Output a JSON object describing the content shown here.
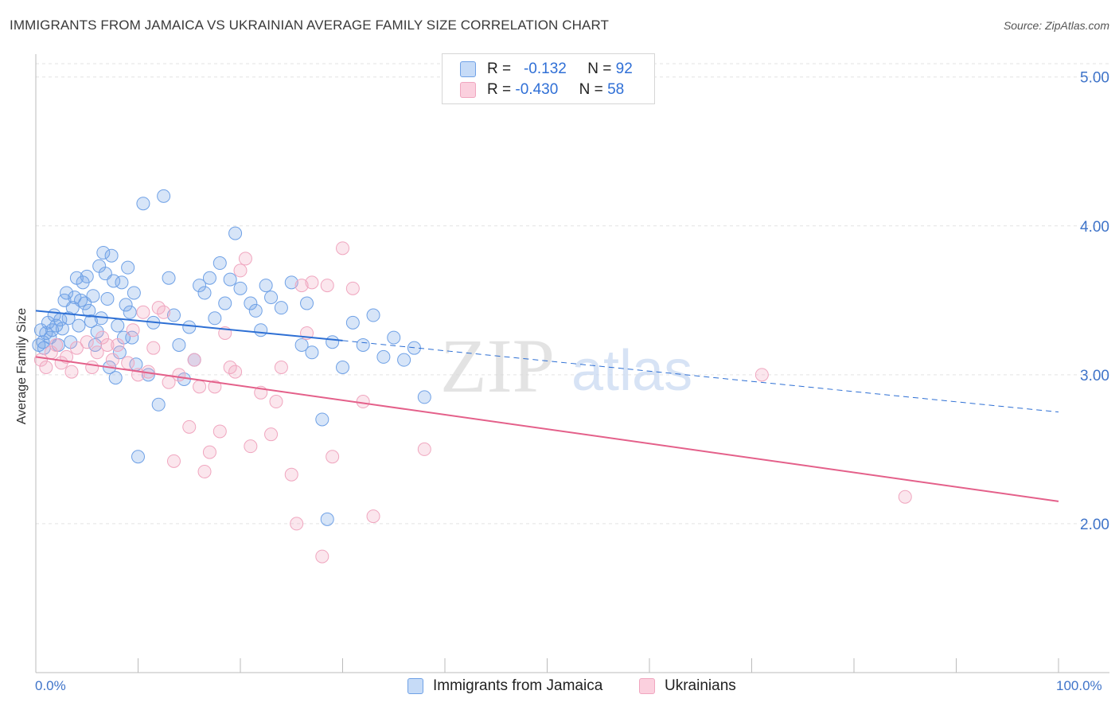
{
  "title": "IMMIGRANTS FROM JAMAICA VS UKRAINIAN AVERAGE FAMILY SIZE CORRELATION CHART",
  "source": "Source: ZipAtlas.com",
  "watermark": {
    "zip": "ZIP",
    "atlas": "atlas"
  },
  "legend": {
    "rows": [
      {
        "r_label": "R =",
        "r_value": "-0.132",
        "n_label": "N =",
        "n_value": "92"
      },
      {
        "r_label": "R =",
        "r_value": "-0.430",
        "n_label": "N =",
        "n_value": "58"
      }
    ]
  },
  "bottom_legend": {
    "series1": "Immigrants from Jamaica",
    "series2": "Ukrainians"
  },
  "x_tick_labels": {
    "left": "0.0%",
    "right": "100.0%"
  },
  "colors": {
    "blue": "#6fa1e6",
    "blue_line": "#2d6fd4",
    "pink": "#f0a6bf",
    "pink_line": "#e4608a",
    "axis_text": "#3f74c9"
  },
  "chart_data": {
    "type": "scatter",
    "xlabel": "",
    "ylabel": "Average Family Size",
    "xlim": [
      0,
      100
    ],
    "ylim": [
      1.0,
      5.1
    ],
    "y_ticks": [
      2.0,
      3.0,
      4.0,
      5.0
    ],
    "y_tick_labels": [
      "2.00",
      "3.00",
      "4.00",
      "5.00"
    ],
    "grid": true,
    "legend_placement": "top-center",
    "series": [
      {
        "name": "Immigrants from Jamaica",
        "color": "#6fa1e6",
        "trend": {
          "x": [
            0,
            30
          ],
          "y": [
            3.43,
            3.23
          ],
          "dashed_to": [
            100,
            2.75
          ]
        },
        "points": [
          [
            0.3,
            3.2
          ],
          [
            0.5,
            3.3
          ],
          [
            0.7,
            3.22
          ],
          [
            0.8,
            3.18
          ],
          [
            1.0,
            3.28
          ],
          [
            1.2,
            3.35
          ],
          [
            1.4,
            3.25
          ],
          [
            1.6,
            3.3
          ],
          [
            1.8,
            3.4
          ],
          [
            2.0,
            3.33
          ],
          [
            2.2,
            3.2
          ],
          [
            2.4,
            3.37
          ],
          [
            2.6,
            3.31
          ],
          [
            2.8,
            3.5
          ],
          [
            3.0,
            3.55
          ],
          [
            3.2,
            3.38
          ],
          [
            3.4,
            3.22
          ],
          [
            3.6,
            3.45
          ],
          [
            3.8,
            3.52
          ],
          [
            4.0,
            3.65
          ],
          [
            4.2,
            3.33
          ],
          [
            4.4,
            3.5
          ],
          [
            4.6,
            3.62
          ],
          [
            4.8,
            3.48
          ],
          [
            5.0,
            3.66
          ],
          [
            5.2,
            3.43
          ],
          [
            5.4,
            3.36
          ],
          [
            5.6,
            3.53
          ],
          [
            5.8,
            3.2
          ],
          [
            6.0,
            3.29
          ],
          [
            6.2,
            3.73
          ],
          [
            6.4,
            3.38
          ],
          [
            6.6,
            3.82
          ],
          [
            6.8,
            3.68
          ],
          [
            7.0,
            3.51
          ],
          [
            7.2,
            3.05
          ],
          [
            7.4,
            3.8
          ],
          [
            7.6,
            3.63
          ],
          [
            7.8,
            2.98
          ],
          [
            8.0,
            3.33
          ],
          [
            8.2,
            3.15
          ],
          [
            8.4,
            3.62
          ],
          [
            8.6,
            3.25
          ],
          [
            8.8,
            3.47
          ],
          [
            9.0,
            3.72
          ],
          [
            9.2,
            3.42
          ],
          [
            9.4,
            3.25
          ],
          [
            9.6,
            3.55
          ],
          [
            9.8,
            3.07
          ],
          [
            10.0,
            2.45
          ],
          [
            10.5,
            4.15
          ],
          [
            11.0,
            3.0
          ],
          [
            11.5,
            3.35
          ],
          [
            12.0,
            2.8
          ],
          [
            12.5,
            4.2
          ],
          [
            13.0,
            3.65
          ],
          [
            13.5,
            3.4
          ],
          [
            14.0,
            3.2
          ],
          [
            14.5,
            2.97
          ],
          [
            15.0,
            3.32
          ],
          [
            15.5,
            3.1
          ],
          [
            16.0,
            3.6
          ],
          [
            16.5,
            3.55
          ],
          [
            17.0,
            3.65
          ],
          [
            17.5,
            3.38
          ],
          [
            18.0,
            3.75
          ],
          [
            18.5,
            3.48
          ],
          [
            19.0,
            3.64
          ],
          [
            19.5,
            3.95
          ],
          [
            20.0,
            3.58
          ],
          [
            21.0,
            3.48
          ],
          [
            21.5,
            3.43
          ],
          [
            22.0,
            3.3
          ],
          [
            22.5,
            3.6
          ],
          [
            23.0,
            3.52
          ],
          [
            24.0,
            3.45
          ],
          [
            25.0,
            3.62
          ],
          [
            26.0,
            3.2
          ],
          [
            26.5,
            3.48
          ],
          [
            27.0,
            3.15
          ],
          [
            28.0,
            2.7
          ],
          [
            28.5,
            2.03
          ],
          [
            29.0,
            3.22
          ],
          [
            30.0,
            3.05
          ],
          [
            31.0,
            3.35
          ],
          [
            32.0,
            3.2
          ],
          [
            33.0,
            3.4
          ],
          [
            34.0,
            3.12
          ],
          [
            35.0,
            3.25
          ],
          [
            36.0,
            3.1
          ],
          [
            37.0,
            3.18
          ],
          [
            38.0,
            2.85
          ]
        ]
      },
      {
        "name": "Ukrainians",
        "color": "#f0a6bf",
        "trend": {
          "x": [
            0,
            100
          ],
          "y": [
            3.12,
            2.15
          ]
        },
        "points": [
          [
            0.5,
            3.1
          ],
          [
            1.0,
            3.05
          ],
          [
            1.5,
            3.15
          ],
          [
            2.0,
            3.2
          ],
          [
            2.5,
            3.08
          ],
          [
            3.0,
            3.12
          ],
          [
            3.5,
            3.02
          ],
          [
            4.0,
            3.18
          ],
          [
            5.0,
            3.22
          ],
          [
            5.5,
            3.05
          ],
          [
            6.0,
            3.15
          ],
          [
            6.5,
            3.25
          ],
          [
            7.0,
            3.2
          ],
          [
            7.5,
            3.1
          ],
          [
            8.0,
            3.2
          ],
          [
            9.0,
            3.08
          ],
          [
            9.5,
            3.3
          ],
          [
            10.0,
            3.0
          ],
          [
            10.5,
            3.42
          ],
          [
            11.0,
            3.02
          ],
          [
            11.5,
            3.18
          ],
          [
            12.0,
            3.45
          ],
          [
            12.5,
            3.42
          ],
          [
            13.0,
            2.95
          ],
          [
            13.5,
            2.42
          ],
          [
            14.0,
            3.0
          ],
          [
            15.0,
            2.65
          ],
          [
            15.5,
            3.1
          ],
          [
            16.0,
            2.92
          ],
          [
            16.5,
            2.35
          ],
          [
            17.0,
            2.48
          ],
          [
            17.5,
            2.92
          ],
          [
            18.0,
            2.62
          ],
          [
            18.5,
            3.28
          ],
          [
            19.0,
            3.05
          ],
          [
            19.5,
            3.02
          ],
          [
            20.0,
            3.7
          ],
          [
            20.5,
            3.78
          ],
          [
            21.0,
            2.52
          ],
          [
            22.0,
            2.88
          ],
          [
            23.0,
            2.6
          ],
          [
            23.5,
            2.82
          ],
          [
            24.0,
            3.05
          ],
          [
            25.0,
            2.33
          ],
          [
            25.5,
            2.0
          ],
          [
            26.0,
            3.6
          ],
          [
            26.5,
            3.28
          ],
          [
            27.0,
            3.62
          ],
          [
            28.0,
            1.78
          ],
          [
            28.5,
            3.6
          ],
          [
            29.0,
            2.45
          ],
          [
            30.0,
            3.85
          ],
          [
            31.0,
            3.58
          ],
          [
            32.0,
            2.82
          ],
          [
            33.0,
            2.05
          ],
          [
            38.0,
            2.5
          ],
          [
            71.0,
            3.0
          ],
          [
            85.0,
            2.18
          ]
        ]
      }
    ]
  }
}
